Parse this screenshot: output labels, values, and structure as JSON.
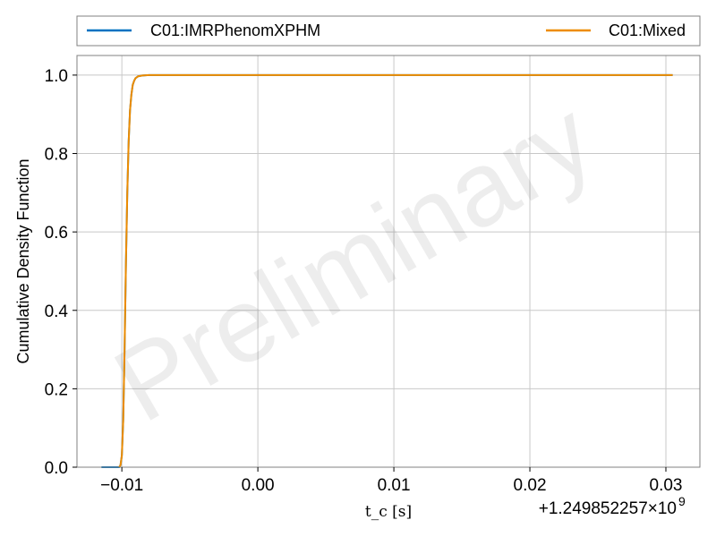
{
  "chart_data": {
    "type": "line",
    "title": "",
    "xlabel": "t_c [s]",
    "ylabel": "Cumulative Density Function",
    "x_offset_label": "+1.249852257×10",
    "x_offset_exponent": "9",
    "watermark": "Preliminary",
    "xlim": [
      -0.0133,
      0.0325
    ],
    "ylim": [
      0.0,
      1.05
    ],
    "x_ticks": [
      {
        "value": -0.01,
        "label": "−0.01"
      },
      {
        "value": 0.0,
        "label": "0.00"
      },
      {
        "value": 0.01,
        "label": "0.01"
      },
      {
        "value": 0.02,
        "label": "0.02"
      },
      {
        "value": 0.03,
        "label": "0.03"
      }
    ],
    "y_ticks": [
      {
        "value": 0.0,
        "label": "0.0"
      },
      {
        "value": 0.2,
        "label": "0.2"
      },
      {
        "value": 0.4,
        "label": "0.4"
      },
      {
        "value": 0.6,
        "label": "0.6"
      },
      {
        "value": 0.8,
        "label": "0.8"
      },
      {
        "value": 1.0,
        "label": "1.0"
      }
    ],
    "grid": true,
    "legend": {
      "placement": "top, above plot, two columns"
    },
    "series": [
      {
        "name": "C01:IMRPhenomXPHM",
        "color": "#0072C1",
        "x": [
          -0.0115,
          -0.0102,
          -0.0101,
          -0.01,
          -0.0099,
          -0.0098,
          -0.0097,
          -0.0096,
          -0.0095,
          -0.0094,
          -0.0093,
          -0.0092,
          -0.0091,
          -0.009,
          -0.0088,
          -0.0085,
          -0.008,
          0.0,
          0.01,
          0.02,
          0.0305
        ],
        "y": [
          0.0,
          0.0,
          0.005,
          0.03,
          0.12,
          0.3,
          0.52,
          0.7,
          0.83,
          0.91,
          0.95,
          0.975,
          0.985,
          0.992,
          0.997,
          0.999,
          1.0,
          1.0,
          1.0,
          1.0,
          1.0
        ]
      },
      {
        "name": "C01:Mixed",
        "color": "#EE8C00",
        "x": [
          -0.0102,
          -0.0101,
          -0.01,
          -0.0099,
          -0.0098,
          -0.0097,
          -0.0096,
          -0.0095,
          -0.0094,
          -0.0093,
          -0.0092,
          -0.0091,
          -0.009,
          -0.0088,
          -0.0085,
          -0.008,
          0.0,
          0.01,
          0.02,
          0.0305
        ],
        "y": [
          0.0,
          0.005,
          0.03,
          0.12,
          0.3,
          0.52,
          0.7,
          0.83,
          0.91,
          0.95,
          0.975,
          0.985,
          0.992,
          0.997,
          0.999,
          1.0,
          1.0,
          1.0,
          1.0,
          1.0
        ]
      }
    ]
  }
}
